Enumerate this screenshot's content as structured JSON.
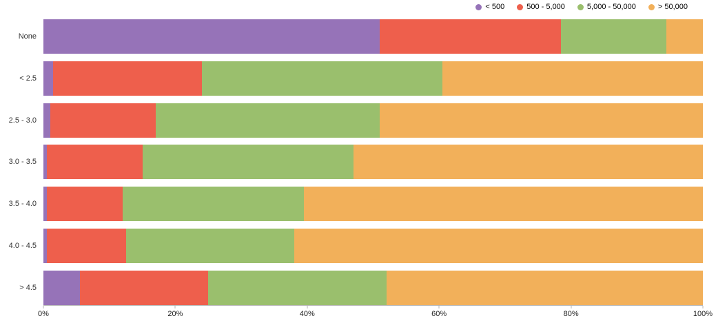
{
  "chart_data": {
    "type": "bar",
    "stacked": true,
    "orientation": "horizontal",
    "title": "",
    "xlabel": "",
    "ylabel": "",
    "xlim": [
      0,
      100
    ],
    "grid": false,
    "legend_position": "top-right",
    "categories": [
      "None",
      "< 2.5",
      "2.5 - 3.0",
      "3.0 - 3.5",
      "3.5 - 4.0",
      "4.0 - 4.5",
      "> 4.5"
    ],
    "x_ticks": [
      "0%",
      "20%",
      "40%",
      "60%",
      "80%",
      "100%"
    ],
    "series": [
      {
        "name": "< 500",
        "color": "#9673b8",
        "values": [
          51.0,
          1.5,
          1.0,
          0.5,
          0.5,
          0.5,
          5.5
        ]
      },
      {
        "name": "500 - 5,000",
        "color": "#ee5f4c",
        "values": [
          27.5,
          22.5,
          16.0,
          14.5,
          11.5,
          12.0,
          19.5
        ]
      },
      {
        "name": "5,000 - 50,000",
        "color": "#9abf6d",
        "values": [
          16.0,
          36.5,
          34.0,
          32.0,
          27.5,
          25.5,
          27.0
        ]
      },
      {
        "name": "> 50,000",
        "color": "#f2b05a",
        "values": [
          5.5,
          39.5,
          49.0,
          53.0,
          60.5,
          62.0,
          48.0
        ]
      }
    ]
  }
}
